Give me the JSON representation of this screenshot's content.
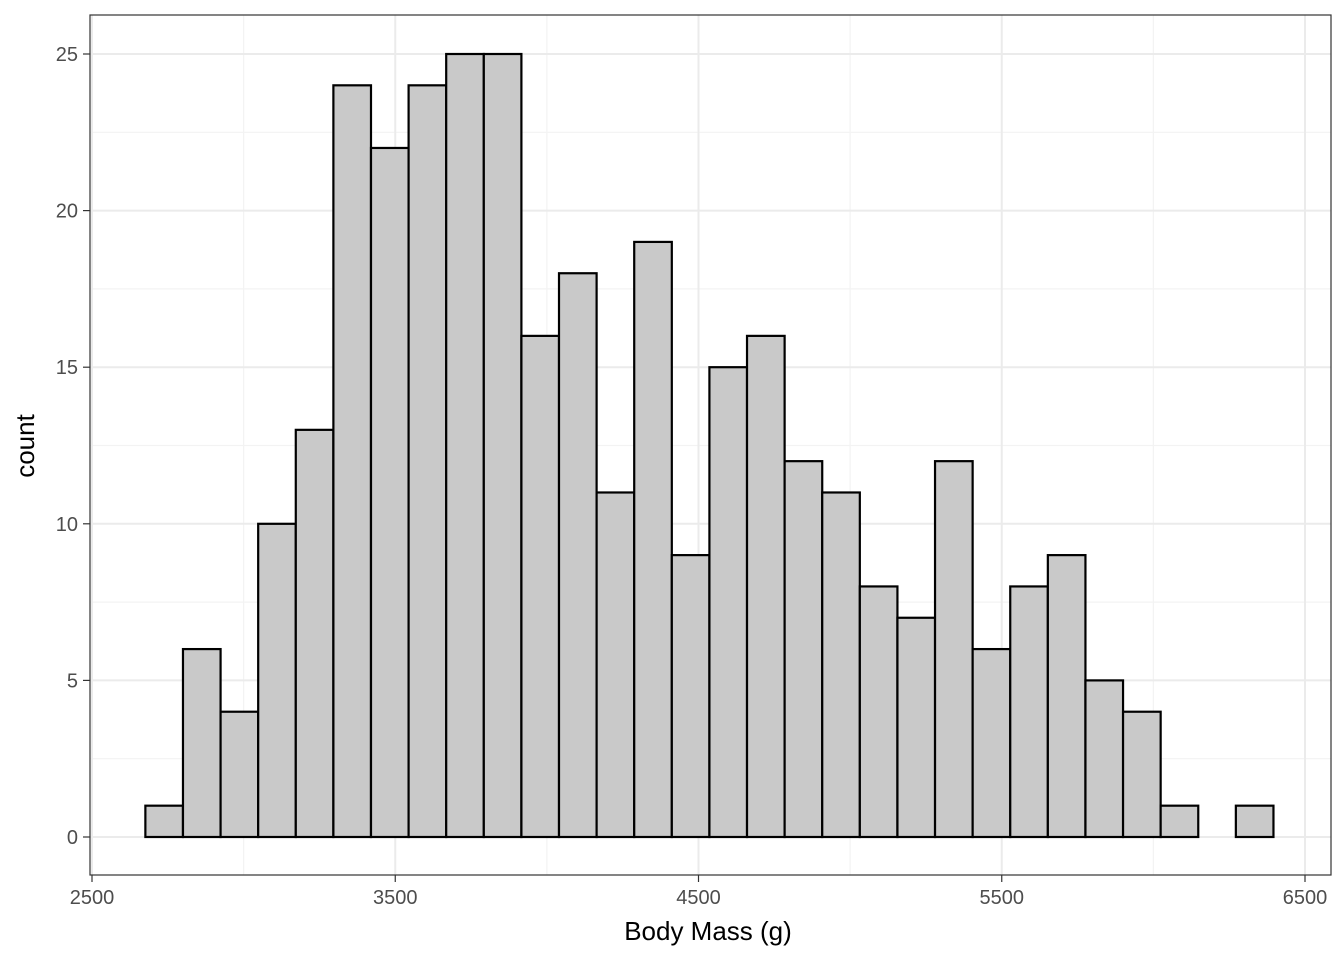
{
  "chart_data": {
    "type": "bar",
    "subtype": "histogram",
    "xlabel": "Body Mass (g)",
    "ylabel": "count",
    "xlim": [
      2500,
      6500
    ],
    "ylim": [
      0,
      25
    ],
    "x_ticks": [
      2500,
      3500,
      4500,
      5500,
      6500
    ],
    "y_ticks": [
      0,
      5,
      10,
      15,
      20,
      25
    ],
    "grid": true,
    "bin_start": 2676,
    "bin_width": 124,
    "bins": [
      {
        "x0": 2676,
        "x1": 2800,
        "count": 1
      },
      {
        "x0": 2800,
        "x1": 2924,
        "count": 6
      },
      {
        "x0": 2924,
        "x1": 3048,
        "count": 4
      },
      {
        "x0": 3048,
        "x1": 3172,
        "count": 10
      },
      {
        "x0": 3172,
        "x1": 3296,
        "count": 13
      },
      {
        "x0": 3296,
        "x1": 3420,
        "count": 24
      },
      {
        "x0": 3420,
        "x1": 3544,
        "count": 22
      },
      {
        "x0": 3544,
        "x1": 3668,
        "count": 24
      },
      {
        "x0": 3668,
        "x1": 3792,
        "count": 25
      },
      {
        "x0": 3792,
        "x1": 3916,
        "count": 25
      },
      {
        "x0": 3916,
        "x1": 4040,
        "count": 16
      },
      {
        "x0": 4040,
        "x1": 4164,
        "count": 18
      },
      {
        "x0": 4164,
        "x1": 4288,
        "count": 11
      },
      {
        "x0": 4288,
        "x1": 4412,
        "count": 19
      },
      {
        "x0": 4412,
        "x1": 4536,
        "count": 9
      },
      {
        "x0": 4536,
        "x1": 4660,
        "count": 15
      },
      {
        "x0": 4660,
        "x1": 4784,
        "count": 16
      },
      {
        "x0": 4784,
        "x1": 4908,
        "count": 12
      },
      {
        "x0": 4908,
        "x1": 5032,
        "count": 11
      },
      {
        "x0": 5032,
        "x1": 5156,
        "count": 8
      },
      {
        "x0": 5156,
        "x1": 5280,
        "count": 7
      },
      {
        "x0": 5280,
        "x1": 5404,
        "count": 12
      },
      {
        "x0": 5404,
        "x1": 5528,
        "count": 6
      },
      {
        "x0": 5528,
        "x1": 5652,
        "count": 8
      },
      {
        "x0": 5652,
        "x1": 5776,
        "count": 9
      },
      {
        "x0": 5776,
        "x1": 5900,
        "count": 5
      },
      {
        "x0": 5900,
        "x1": 6024,
        "count": 4
      },
      {
        "x0": 6024,
        "x1": 6148,
        "count": 1
      },
      {
        "x0": 6148,
        "x1": 6272,
        "count": 0
      },
      {
        "x0": 6272,
        "x1": 6396,
        "count": 1
      }
    ],
    "colors": {
      "bar_fill": "#c9c9c9",
      "bar_stroke": "#000000",
      "panel_border": "#333333",
      "grid_major": "#ebebeb",
      "grid_minor": "#f3f3f3"
    }
  }
}
